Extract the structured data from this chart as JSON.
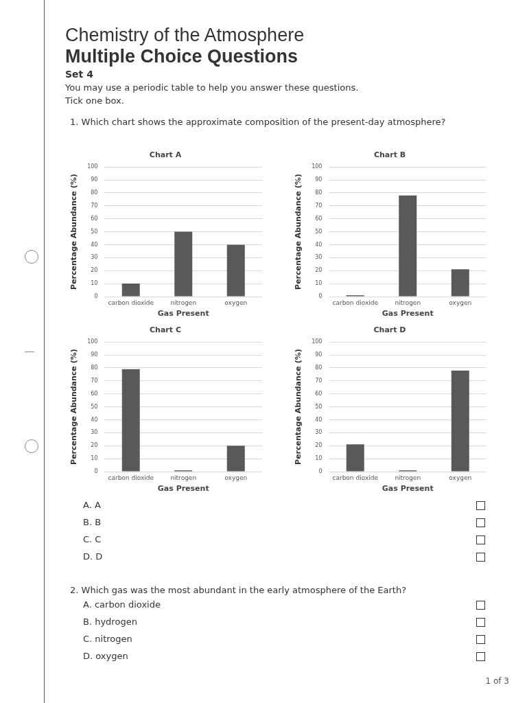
{
  "chart_data": [
    {
      "type": "other",
      "title": "Chemistry of the Atmosphere",
      "subtitle": "Multiple Choice Questions",
      "annotations": [
        "Set 4",
        "You may use a periodic table to help you answer these questions.",
        "Tick one box.",
        "1.  Which chart shows the approximate composition of the present-day atmosphere?"
      ]
    },
    {
      "type": "bar",
      "title": "Chart A",
      "categories": [
        "carbon dioxide",
        "nitrogen",
        "oxygen"
      ],
      "values": [
        10,
        50,
        40
      ],
      "color": "#595959",
      "xlabel": "Gas Present",
      "ylabel": "Percentage Abundance (%)",
      "ylim": [
        0,
        100
      ],
      "yticks": [
        0,
        10,
        20,
        30,
        40,
        50,
        60,
        70,
        80,
        90,
        100
      ],
      "grid": "y"
    },
    {
      "type": "bar",
      "title": "Chart B",
      "categories": [
        "carbon dioxide",
        "nitrogen",
        "oxygen"
      ],
      "values": [
        1,
        78,
        21
      ],
      "color": "#595959",
      "xlabel": "Gas Present",
      "ylabel": "Percentage Abundance (%)",
      "ylim": [
        0,
        100
      ],
      "yticks": [
        0,
        10,
        20,
        30,
        40,
        50,
        60,
        70,
        80,
        90,
        100
      ],
      "grid": "y"
    },
    {
      "type": "bar",
      "title": "Chart C",
      "categories": [
        "carbon dioxide",
        "nitrogen",
        "oxygen"
      ],
      "values": [
        79,
        1,
        20
      ],
      "color": "#595959",
      "xlabel": "Gas Present",
      "ylabel": "Percentage Abundance (%)",
      "ylim": [
        0,
        100
      ],
      "yticks": [
        0,
        10,
        20,
        30,
        40,
        50,
        60,
        70,
        80,
        90,
        100
      ],
      "grid": "y"
    },
    {
      "type": "bar",
      "title": "Chart D",
      "categories": [
        "carbon dioxide",
        "nitrogen",
        "oxygen"
      ],
      "values": [
        21,
        1,
        78
      ],
      "color": "#595959",
      "xlabel": "Gas Present",
      "ylabel": "Percentage Abundance (%)",
      "ylim": [
        0,
        100
      ],
      "yticks": [
        0,
        10,
        20,
        30,
        40,
        50,
        60,
        70,
        80,
        90,
        100
      ],
      "grid": "y"
    },
    {
      "type": "other",
      "annotations": [
        "A.  A",
        "B.  B",
        "C.  C",
        "D.  D"
      ]
    },
    {
      "type": "other",
      "title": "2.  Which gas was the most abundant in the early atmosphere of the Earth?",
      "annotations": [
        "A.  carbon dioxide",
        "B.  hydrogen",
        "C.  nitrogen",
        "D.  oxygen"
      ]
    },
    {
      "type": "other",
      "annotations": [
        "1 of 3"
      ]
    }
  ]
}
